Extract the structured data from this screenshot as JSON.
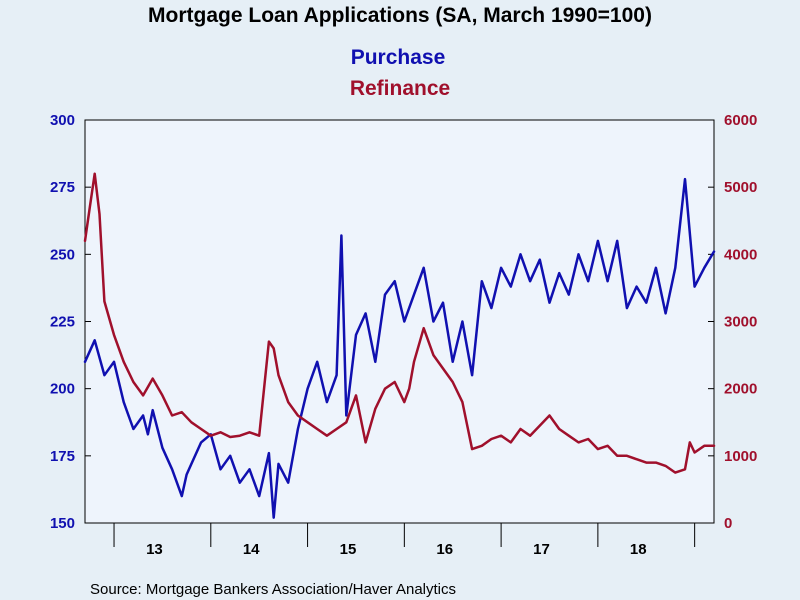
{
  "chart_data": {
    "type": "line",
    "title": "Mortgage Loan Applications (SA, March 1990=100)",
    "source": "Source:  Mortgage Bankers Association/Haver Analytics",
    "x_tick_labels": [
      "13",
      "14",
      "15",
      "16",
      "17",
      "18"
    ],
    "x_range": [
      2012.7,
      2019.2
    ],
    "y_left": {
      "ticks": [
        "300",
        "275",
        "250",
        "225",
        "200",
        "175",
        "150"
      ],
      "range": [
        150,
        300
      ],
      "color": "#1010b0"
    },
    "y_right": {
      "ticks": [
        "6000",
        "5000",
        "4000",
        "3000",
        "2000",
        "1000",
        "0"
      ],
      "range": [
        0,
        6000
      ],
      "color": "#a0102c"
    },
    "grid": false,
    "legend_position": "top-center",
    "series": [
      {
        "name": "Purchase",
        "axis": "left",
        "color": "#1010b0",
        "x": [
          2012.7,
          2012.8,
          2012.9,
          2013.0,
          2013.1,
          2013.2,
          2013.3,
          2013.35,
          2013.4,
          2013.5,
          2013.6,
          2013.7,
          2013.75,
          2013.8,
          2013.9,
          2014.0,
          2014.1,
          2014.2,
          2014.3,
          2014.4,
          2014.5,
          2014.6,
          2014.65,
          2014.7,
          2014.8,
          2014.9,
          2015.0,
          2015.1,
          2015.2,
          2015.3,
          2015.35,
          2015.4,
          2015.5,
          2015.6,
          2015.7,
          2015.8,
          2015.9,
          2016.0,
          2016.1,
          2016.2,
          2016.3,
          2016.4,
          2016.5,
          2016.6,
          2016.7,
          2016.8,
          2016.9,
          2017.0,
          2017.1,
          2017.2,
          2017.3,
          2017.4,
          2017.5,
          2017.6,
          2017.7,
          2017.8,
          2017.9,
          2018.0,
          2018.1,
          2018.2,
          2018.3,
          2018.4,
          2018.5,
          2018.6,
          2018.7,
          2018.8,
          2018.9,
          2019.0,
          2019.1,
          2019.2
        ],
        "values": [
          210,
          218,
          205,
          210,
          195,
          185,
          190,
          183,
          192,
          178,
          170,
          160,
          168,
          172,
          180,
          183,
          170,
          175,
          165,
          170,
          160,
          176,
          152,
          172,
          165,
          185,
          200,
          210,
          195,
          205,
          257,
          190,
          220,
          228,
          210,
          235,
          240,
          225,
          235,
          245,
          225,
          232,
          210,
          225,
          205,
          240,
          230,
          245,
          238,
          250,
          240,
          248,
          232,
          243,
          235,
          250,
          240,
          255,
          240,
          255,
          230,
          238,
          232,
          245,
          228,
          245,
          278,
          238,
          245,
          251
        ]
      },
      {
        "name": "Refinance",
        "axis": "right",
        "color": "#a0102c",
        "x": [
          2012.7,
          2012.75,
          2012.8,
          2012.85,
          2012.9,
          2013.0,
          2013.1,
          2013.2,
          2013.3,
          2013.4,
          2013.5,
          2013.6,
          2013.7,
          2013.8,
          2013.9,
          2014.0,
          2014.1,
          2014.2,
          2014.3,
          2014.4,
          2014.5,
          2014.6,
          2014.65,
          2014.7,
          2014.8,
          2014.9,
          2015.0,
          2015.1,
          2015.2,
          2015.3,
          2015.4,
          2015.5,
          2015.6,
          2015.7,
          2015.8,
          2015.9,
          2016.0,
          2016.05,
          2016.1,
          2016.2,
          2016.3,
          2016.4,
          2016.5,
          2016.6,
          2016.7,
          2016.8,
          2016.9,
          2017.0,
          2017.1,
          2017.2,
          2017.3,
          2017.4,
          2017.5,
          2017.6,
          2017.7,
          2017.8,
          2017.9,
          2018.0,
          2018.1,
          2018.2,
          2018.3,
          2018.4,
          2018.5,
          2018.6,
          2018.7,
          2018.8,
          2018.9,
          2018.95,
          2019.0,
          2019.1,
          2019.2
        ],
        "values": [
          4200,
          4700,
          5200,
          4600,
          3300,
          2800,
          2400,
          2100,
          1900,
          2150,
          1900,
          1600,
          1650,
          1500,
          1400,
          1300,
          1350,
          1280,
          1300,
          1350,
          1300,
          2700,
          2600,
          2200,
          1800,
          1600,
          1500,
          1400,
          1300,
          1400,
          1500,
          1900,
          1200,
          1700,
          2000,
          2100,
          1800,
          2000,
          2400,
          2900,
          2500,
          2300,
          2100,
          1800,
          1100,
          1150,
          1250,
          1300,
          1200,
          1400,
          1300,
          1450,
          1600,
          1400,
          1300,
          1200,
          1250,
          1100,
          1150,
          1000,
          1000,
          950,
          900,
          900,
          850,
          750,
          800,
          1200,
          1050,
          1150,
          1150
        ]
      }
    ]
  }
}
